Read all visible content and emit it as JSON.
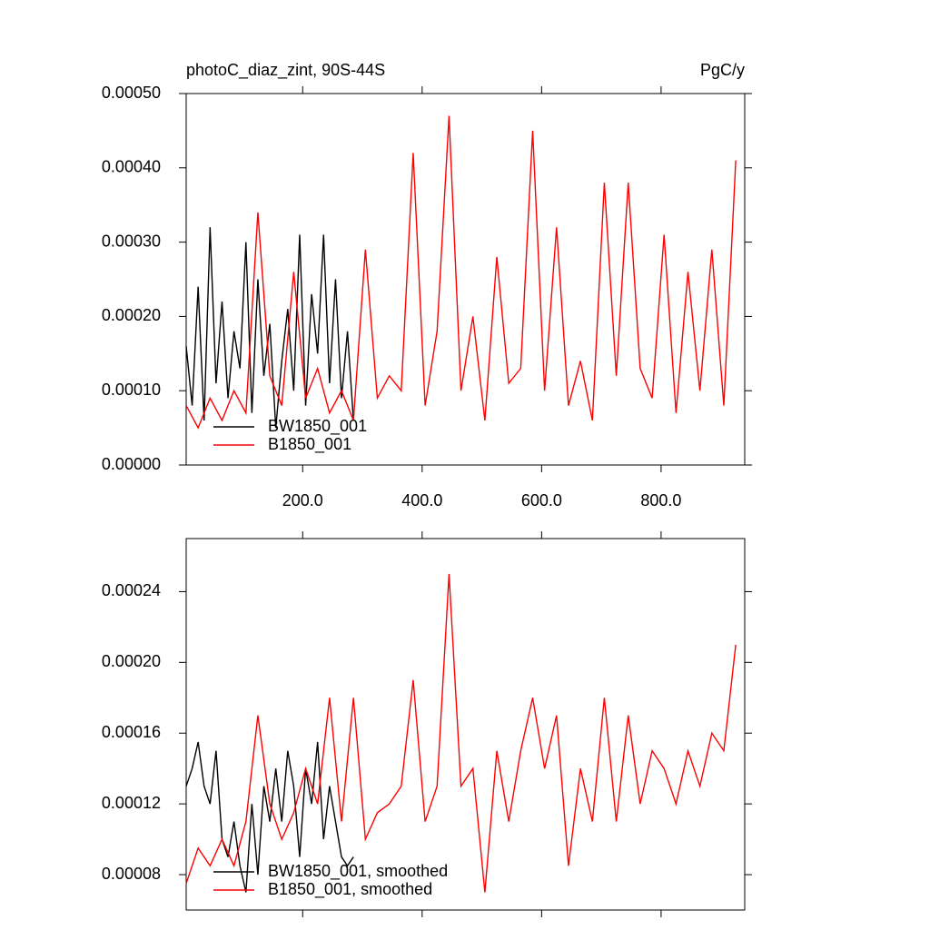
{
  "chart_data": [
    {
      "type": "line",
      "title_left": "photoC_diaz_zint, 90S-44S",
      "title_right": "PgC/y",
      "xlim": [
        5,
        940
      ],
      "ylim": [
        0,
        0.0005
      ],
      "xticks": [
        {
          "value": 200,
          "label": "200.0"
        },
        {
          "value": 400,
          "label": "400.0"
        },
        {
          "value": 600,
          "label": "600.0"
        },
        {
          "value": 800,
          "label": "800.0"
        }
      ],
      "yticks": [
        {
          "value": 0,
          "label": "0.00000"
        },
        {
          "value": 0.0001,
          "label": "0.00010"
        },
        {
          "value": 0.0002,
          "label": "0.00020"
        },
        {
          "value": 0.0003,
          "label": "0.00030"
        },
        {
          "value": 0.0004,
          "label": "0.00040"
        },
        {
          "value": 0.0005,
          "label": "0.00050"
        }
      ],
      "xtick_labels": true,
      "legend": "lower left",
      "series": [
        {
          "name": "BW1850_001",
          "color": "#000000",
          "x": [
            5,
            15,
            25,
            35,
            45,
            55,
            65,
            75,
            85,
            95,
            105,
            115,
            125,
            135,
            145,
            155,
            165,
            175,
            185,
            195,
            205,
            215,
            225,
            235,
            245,
            255,
            265,
            275,
            285
          ],
          "values": [
            0.00016,
            8e-05,
            0.00024,
            6e-05,
            0.00032,
            0.00011,
            0.00022,
            9e-05,
            0.00018,
            0.00013,
            0.0003,
            7e-05,
            0.00025,
            0.00012,
            0.00019,
            5e-05,
            0.00014,
            0.00021,
            0.0001,
            0.00031,
            8e-05,
            0.00023,
            0.00015,
            0.00031,
            0.00011,
            0.00025,
            9e-05,
            0.00018,
            6e-05
          ]
        },
        {
          "name": "B1850_001",
          "color": "#ff0000",
          "x": [
            5,
            25,
            45,
            65,
            85,
            105,
            125,
            145,
            165,
            185,
            205,
            225,
            245,
            265,
            285,
            305,
            325,
            345,
            365,
            385,
            405,
            425,
            445,
            465,
            485,
            505,
            525,
            545,
            565,
            585,
            605,
            625,
            645,
            665,
            685,
            705,
            725,
            745,
            765,
            785,
            805,
            825,
            845,
            865,
            885,
            905,
            925
          ],
          "values": [
            8e-05,
            5e-05,
            9e-05,
            6e-05,
            0.0001,
            7e-05,
            0.00034,
            0.00012,
            8e-05,
            0.00026,
            9e-05,
            0.00013,
            7e-05,
            0.0001,
            6e-05,
            0.00029,
            9e-05,
            0.00012,
            0.0001,
            0.00042,
            8e-05,
            0.00018,
            0.00047,
            0.0001,
            0.0002,
            6e-05,
            0.00028,
            0.00011,
            0.00013,
            0.00045,
            0.0001,
            0.00032,
            8e-05,
            0.00014,
            6e-05,
            0.00038,
            0.00012,
            0.00038,
            0.00013,
            9e-05,
            0.00031,
            7e-05,
            0.00026,
            0.0001,
            0.00029,
            8e-05,
            0.00041
          ]
        }
      ]
    },
    {
      "type": "line",
      "xlim": [
        5,
        940
      ],
      "ylim": [
        6e-05,
        0.00027
      ],
      "xticks": [
        200,
        400,
        600,
        800
      ],
      "yticks": [
        {
          "value": 8e-05,
          "label": "0.00008"
        },
        {
          "value": 0.00012,
          "label": "0.00012"
        },
        {
          "value": 0.00016,
          "label": "0.00016"
        },
        {
          "value": 0.0002,
          "label": "0.00020"
        },
        {
          "value": 0.00024,
          "label": "0.00024"
        }
      ],
      "xtick_labels": false,
      "legend": "lower left",
      "series": [
        {
          "name": "BW1850_001, smoothed",
          "color": "#000000",
          "x": [
            5,
            15,
            25,
            35,
            45,
            55,
            65,
            75,
            85,
            95,
            105,
            115,
            125,
            135,
            145,
            155,
            165,
            175,
            185,
            195,
            205,
            215,
            225,
            235,
            245,
            255,
            265,
            275,
            285
          ],
          "values": [
            0.00013,
            0.00014,
            0.000155,
            0.00013,
            0.00012,
            0.00015,
            0.0001,
            9e-05,
            0.00011,
            8.5e-05,
            7e-05,
            0.00012,
            8e-05,
            0.00013,
            0.00011,
            0.00014,
            0.00011,
            0.00015,
            0.00013,
            9e-05,
            0.00014,
            0.00012,
            0.000155,
            0.0001,
            0.00013,
            0.00011,
            9e-05,
            8.5e-05,
            9e-05
          ]
        },
        {
          "name": "B1850_001, smoothed",
          "color": "#ff0000",
          "x": [
            5,
            25,
            45,
            65,
            85,
            105,
            125,
            145,
            165,
            185,
            205,
            225,
            245,
            265,
            285,
            305,
            325,
            345,
            365,
            385,
            405,
            425,
            445,
            465,
            485,
            505,
            525,
            545,
            565,
            585,
            605,
            625,
            645,
            665,
            685,
            705,
            725,
            745,
            765,
            785,
            805,
            825,
            845,
            865,
            885,
            905,
            925
          ],
          "values": [
            7.5e-05,
            9.5e-05,
            8.5e-05,
            0.0001,
            8.5e-05,
            0.00011,
            0.00017,
            0.00012,
            0.0001,
            0.000115,
            0.00014,
            0.00012,
            0.00018,
            0.00011,
            0.00018,
            0.0001,
            0.000115,
            0.00012,
            0.00013,
            0.00019,
            0.00011,
            0.00013,
            0.00025,
            0.00013,
            0.00014,
            7e-05,
            0.00015,
            0.00011,
            0.00015,
            0.00018,
            0.00014,
            0.00017,
            8.5e-05,
            0.00014,
            0.00011,
            0.00018,
            0.00011,
            0.00017,
            0.00012,
            0.00015,
            0.00014,
            0.00012,
            0.00015,
            0.00013,
            0.00016,
            0.00015,
            0.00021
          ]
        }
      ]
    }
  ]
}
